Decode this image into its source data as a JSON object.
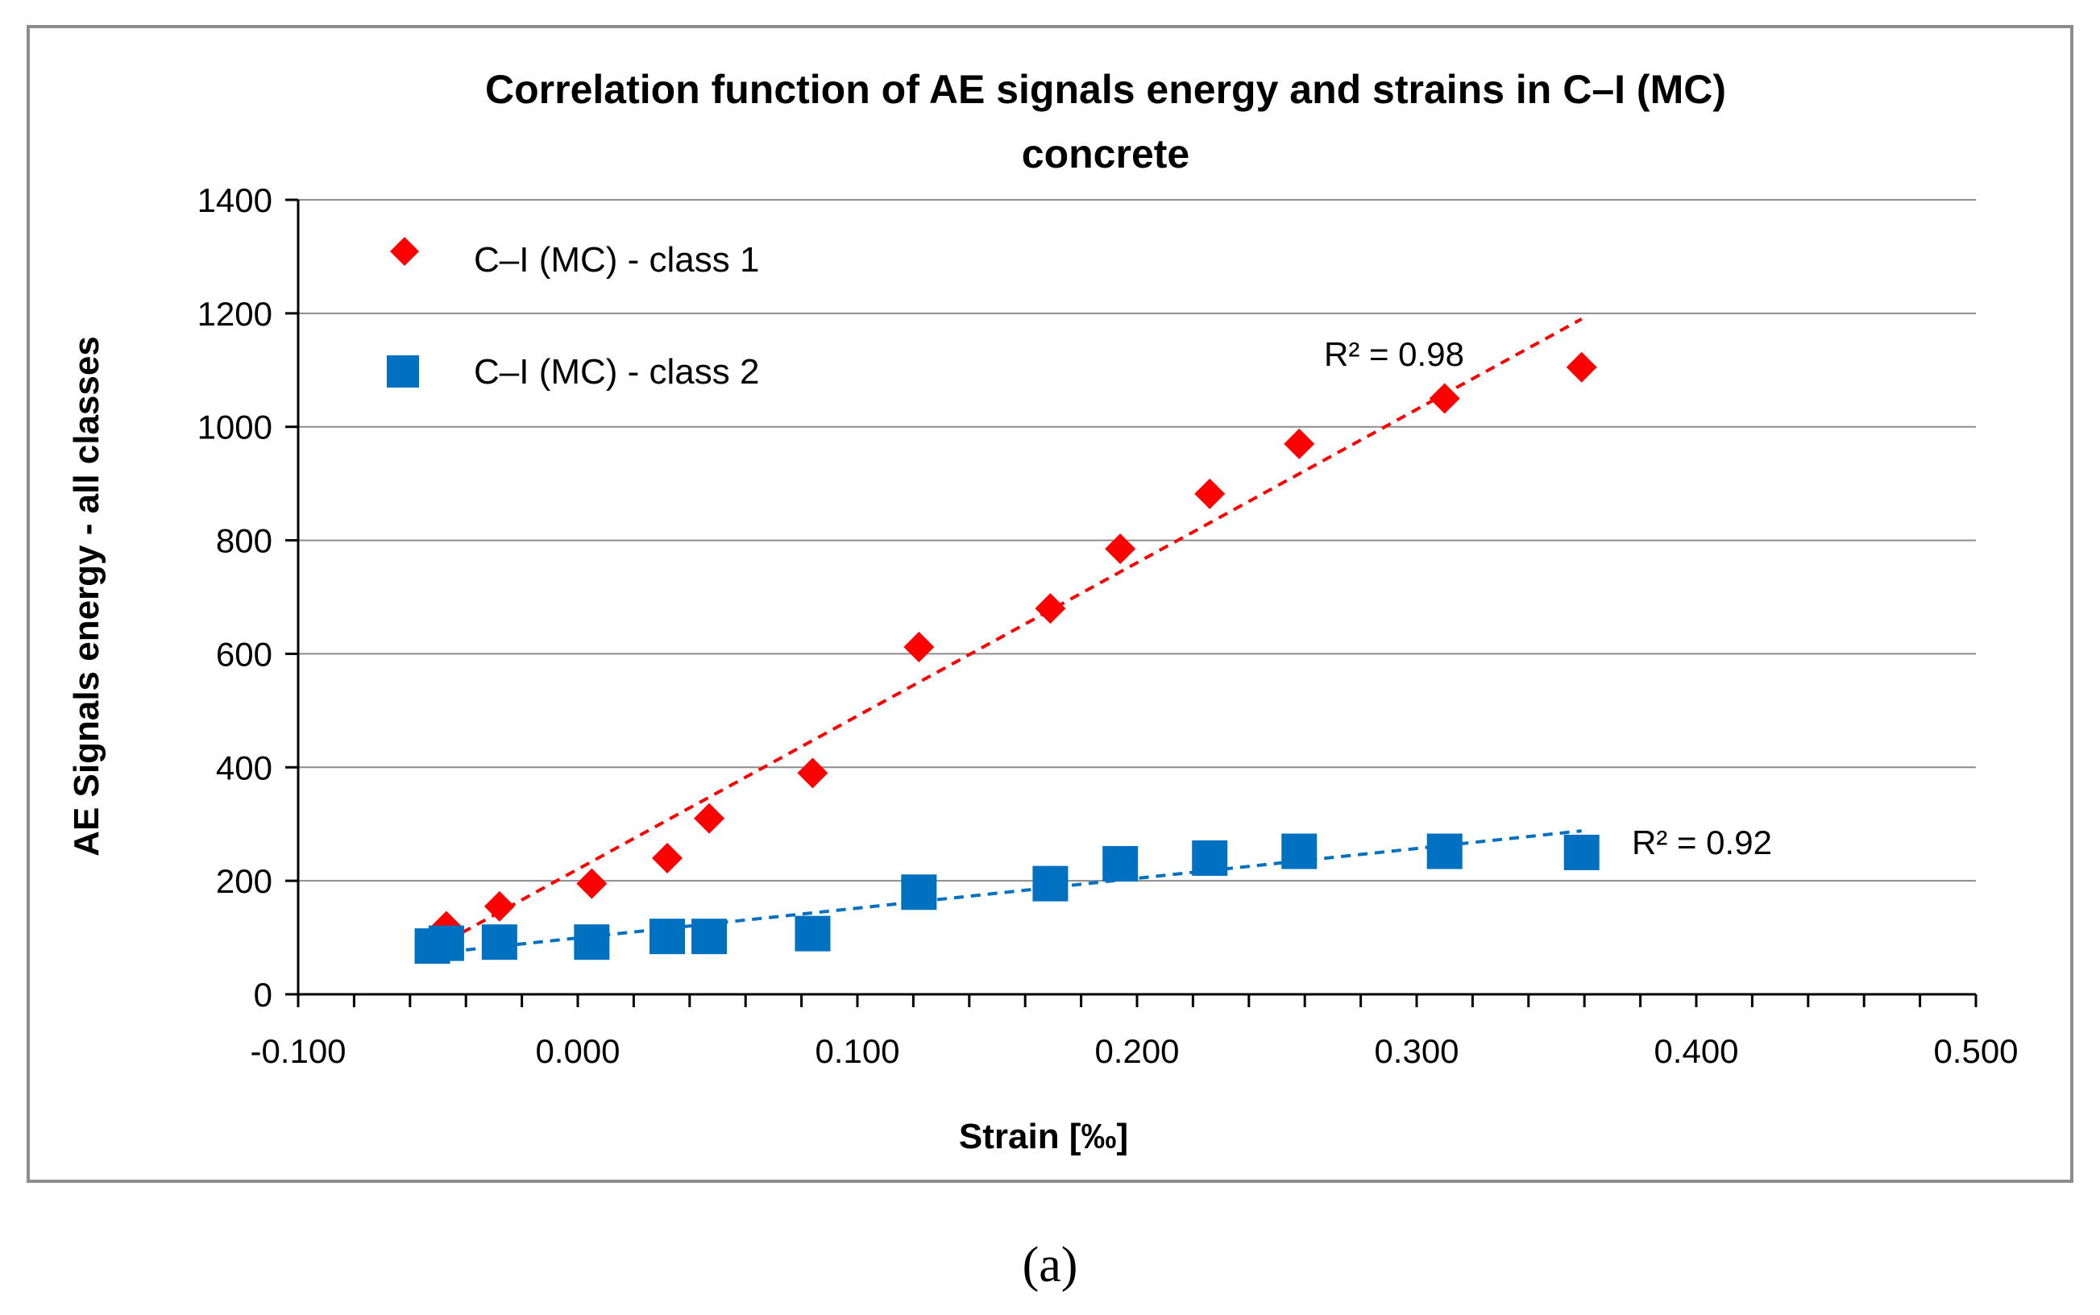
{
  "chart_data": {
    "type": "scatter",
    "title_lines": [
      "Correlation function of AE signals energy and strains in C–I (MC)",
      "concrete"
    ],
    "xlabel": "Strain [‰]",
    "ylabel": "AE  Signals energy - all classes",
    "xlim": [
      -0.1,
      0.5
    ],
    "ylim": [
      0,
      1400
    ],
    "x_ticks": [
      -0.1,
      0.0,
      0.1,
      0.2,
      0.3,
      0.4,
      0.5
    ],
    "x_tick_labels": [
      "-0.100",
      "0.000",
      "0.100",
      "0.200",
      "0.300",
      "0.400",
      "0.500"
    ],
    "y_ticks": [
      0,
      200,
      400,
      600,
      800,
      1000,
      1200,
      1400
    ],
    "y_tick_labels": [
      "0",
      "200",
      "400",
      "600",
      "800",
      "1000",
      "1200",
      "1400"
    ],
    "grid": "horizontal",
    "legend_position": "top-left",
    "series": [
      {
        "name": "C–I (MC) - class 1",
        "marker": "diamond",
        "color": "#ff0000",
        "x": [
          -0.047,
          -0.028,
          0.005,
          0.032,
          0.047,
          0.084,
          0.122,
          0.169,
          0.194,
          0.226,
          0.258,
          0.31,
          0.359
        ],
        "y": [
          120,
          155,
          195,
          240,
          310,
          390,
          612,
          680,
          785,
          882,
          970,
          1050,
          1105
        ],
        "trendline": {
          "x": [
            -0.052,
            0.359
          ],
          "y": [
            80,
            1190
          ],
          "r2_label": "R² = 0.98"
        }
      },
      {
        "name": "C–I (MC) - class 2",
        "marker": "square",
        "color": "#0070c0",
        "x": [
          -0.052,
          -0.047,
          -0.028,
          0.005,
          0.032,
          0.047,
          0.084,
          0.122,
          0.169,
          0.194,
          0.226,
          0.258,
          0.31,
          0.359
        ],
        "y": [
          85,
          90,
          92,
          92,
          102,
          102,
          107,
          180,
          195,
          230,
          240,
          252,
          252,
          250
        ],
        "trendline": {
          "x": [
            -0.052,
            0.359
          ],
          "y": [
            72,
            288
          ],
          "r2_label": "R² = 0.92"
        }
      }
    ]
  },
  "caption": "(a)"
}
